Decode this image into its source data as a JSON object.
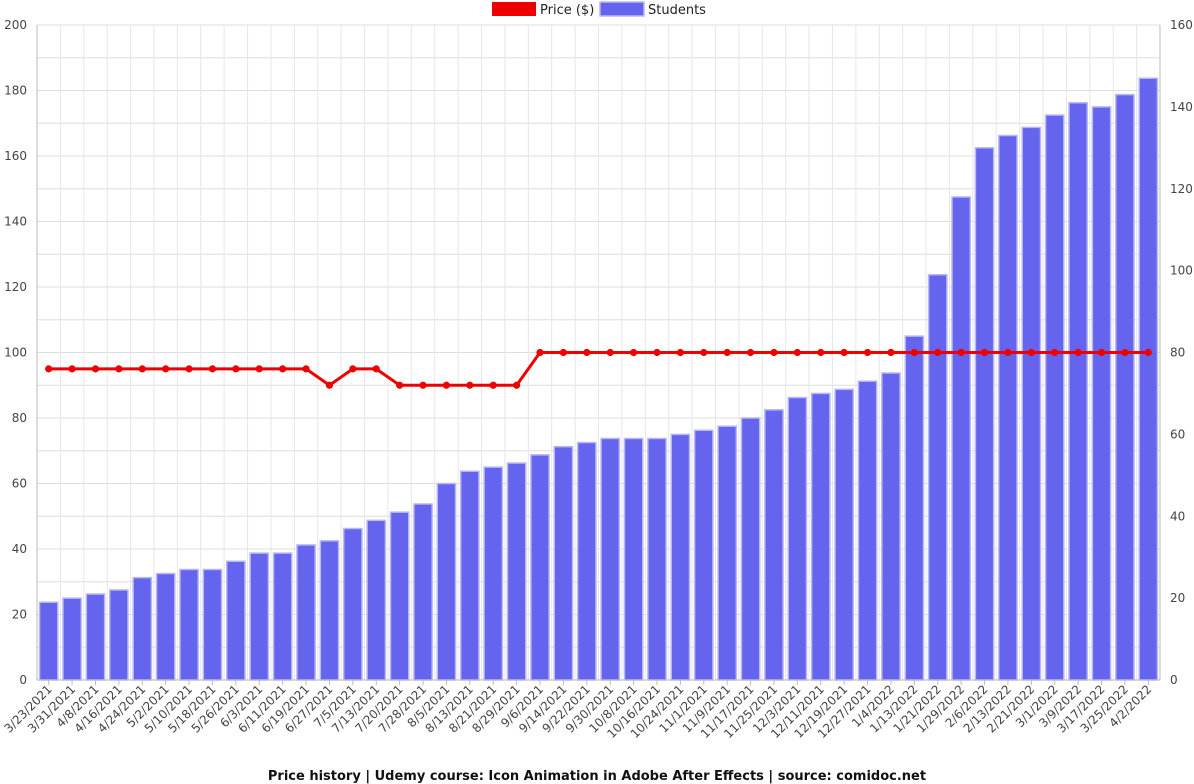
{
  "chart_data": {
    "type": "bar",
    "title": "Price history | Udemy course: Icon Animation in Adobe After Effects | source: comidoc.net",
    "categories": [
      "3/23/2021",
      "3/31/2021",
      "4/8/2021",
      "4/16/2021",
      "4/24/2021",
      "5/2/2021",
      "5/10/2021",
      "5/18/2021",
      "5/26/2021",
      "6/3/2021",
      "6/11/2021",
      "6/19/2021",
      "6/27/2021",
      "7/5/2021",
      "7/13/2021",
      "7/20/2021",
      "7/28/2021",
      "8/5/2021",
      "8/13/2021",
      "8/21/2021",
      "8/29/2021",
      "9/6/2021",
      "9/14/2021",
      "9/22/2021",
      "9/30/2021",
      "10/8/2021",
      "10/16/2021",
      "10/24/2021",
      "11/1/2021",
      "11/9/2021",
      "11/17/2021",
      "11/25/2021",
      "12/3/2021",
      "12/11/2021",
      "12/19/2021",
      "12/27/2021",
      "1/4/2022",
      "1/13/2022",
      "1/21/2022",
      "1/29/2022",
      "2/6/2022",
      "2/13/2022",
      "2/21/2022",
      "3/1/2022",
      "3/9/2022",
      "3/17/2022",
      "3/25/2022",
      "4/2/2022"
    ],
    "series": [
      {
        "name": "Price ($)",
        "type": "line",
        "axis": "left",
        "color": "#ee0000",
        "values": [
          95,
          95,
          95,
          95,
          95,
          95,
          95,
          95,
          95,
          95,
          95,
          95,
          90,
          95,
          95,
          90,
          90,
          90,
          90,
          90,
          90,
          100,
          100,
          100,
          100,
          100,
          100,
          100,
          100,
          100,
          100,
          100,
          100,
          100,
          100,
          100,
          100,
          100,
          100,
          100,
          100,
          100,
          100,
          100,
          100,
          100,
          100,
          100
        ]
      },
      {
        "name": "Students",
        "type": "bar",
        "axis": "right",
        "color": "#6464ee",
        "values": [
          19,
          20,
          21,
          22,
          25,
          26,
          27,
          27,
          29,
          31,
          31,
          33,
          34,
          37,
          39,
          41,
          43,
          48,
          51,
          52,
          53,
          55,
          57,
          58,
          59,
          59,
          59,
          60,
          61,
          62,
          64,
          66,
          69,
          70,
          71,
          73,
          75,
          84,
          99,
          118,
          130,
          133,
          135,
          138,
          141,
          140,
          143,
          147
        ]
      }
    ],
    "y_left": {
      "min": 0,
      "max": 200,
      "ticks": [
        0,
        20,
        40,
        60,
        80,
        100,
        120,
        140,
        160,
        180,
        200
      ]
    },
    "y_right": {
      "min": 0,
      "max": 160,
      "ticks": [
        0,
        20,
        40,
        60,
        80,
        100,
        120,
        140,
        160
      ]
    },
    "grid": true,
    "legend": "top-center"
  }
}
